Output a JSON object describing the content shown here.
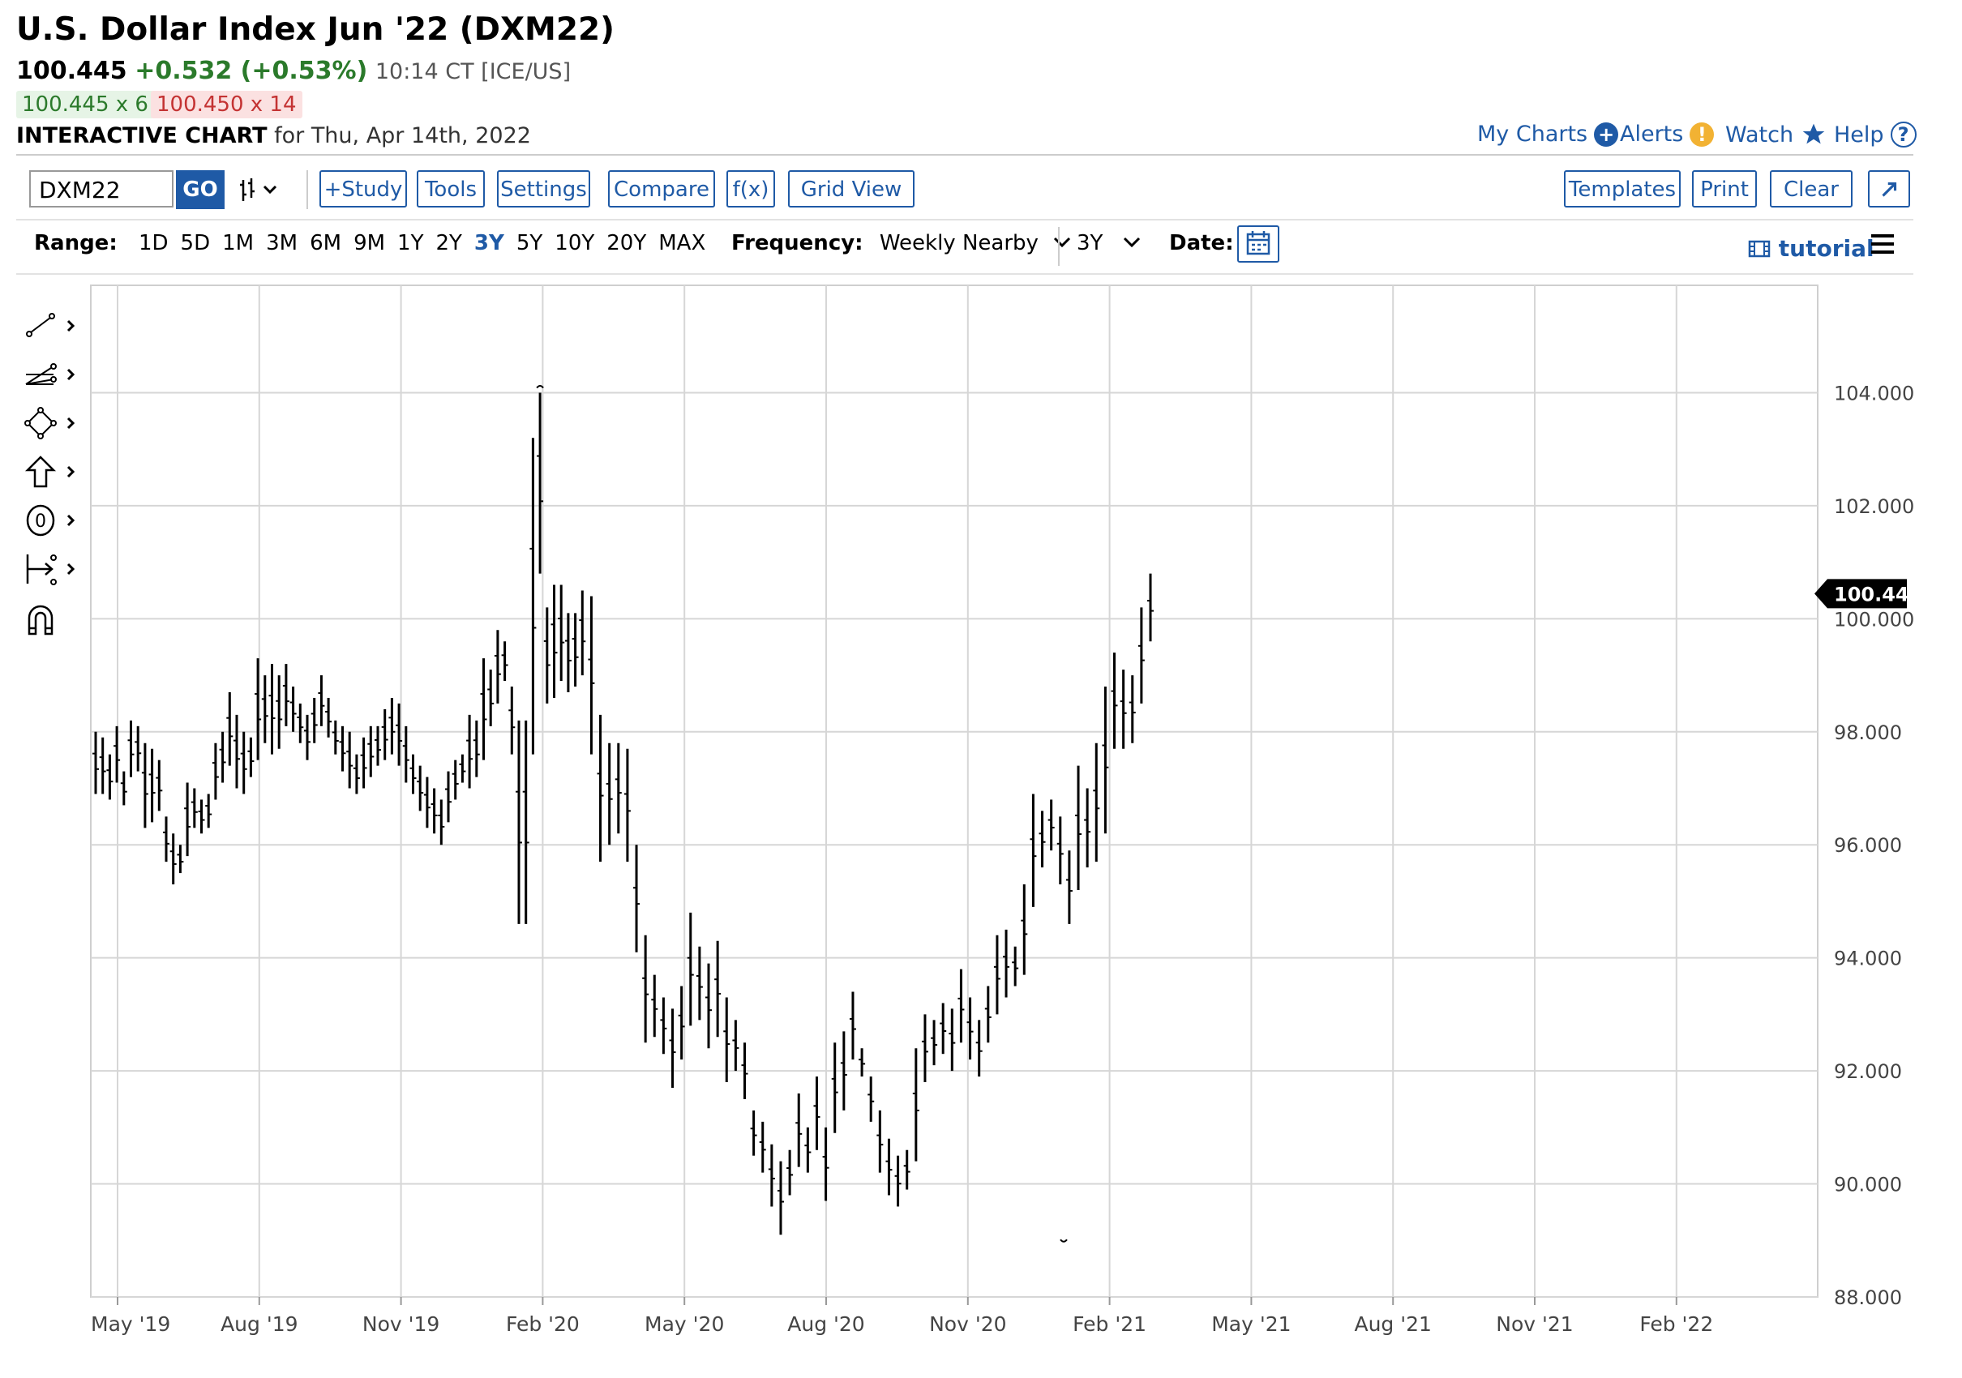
{
  "header": {
    "title": "U.S. Dollar Index Jun '22 (DXM22)",
    "last": "100.445",
    "change": "+0.532 (+0.53%)",
    "time": "10:14 CT [ICE/US]",
    "bid": "100.445 x 6",
    "ask": "100.450 x 14",
    "chart_label": "INTERACTIVE CHART",
    "chart_date": "for Thu, Apr 14th, 2022"
  },
  "toplinks": {
    "my_charts": "My Charts",
    "alerts": "Alerts",
    "watch": "Watch",
    "help": "Help"
  },
  "toolbar": {
    "symbol": "DXM22",
    "go": "GO",
    "study": "+Study",
    "tools": "Tools",
    "settings": "Settings",
    "compare": "Compare",
    "fx": "f(x)",
    "grid_view": "Grid View",
    "templates": "Templates",
    "print": "Print",
    "clear": "Clear"
  },
  "rangebar": {
    "range_label": "Range:",
    "ranges": [
      "1D",
      "5D",
      "1M",
      "3M",
      "6M",
      "9M",
      "1Y",
      "2Y",
      "3Y",
      "5Y",
      "10Y",
      "20Y",
      "MAX"
    ],
    "selected_range": "3Y",
    "frequency_label": "Frequency:",
    "frequency_value": "Weekly Nearby",
    "period_value": "3Y",
    "date_label": "Date:",
    "tutorial": "tutorial"
  },
  "drawing_tools": [
    "line-tool-icon",
    "fan-tool-icon",
    "shape-tool-icon",
    "arrow-tool-icon",
    "text-tool-icon",
    "measure-tool-icon",
    "magnet-icon"
  ],
  "colors": {
    "accent": "#1f5aa6",
    "up": "#2b7a2b",
    "down": "#c43333",
    "bars": "#000000",
    "grid": "#d6d6d6"
  },
  "chart_data": {
    "type": "ohlc",
    "frequency": "weekly",
    "y_ticks": [
      "104.000",
      "102.000",
      "100.000",
      "98.000",
      "96.000",
      "94.000",
      "92.000",
      "90.000",
      "88.000"
    ],
    "ylim": [
      88,
      105.9
    ],
    "x_labels": [
      "May '19",
      "Aug '19",
      "Nov '19",
      "Feb '20",
      "May '20",
      "Aug '20",
      "Nov '20",
      "Feb '21",
      "May '21",
      "Aug '21",
      "Nov '21",
      "Feb '22"
    ],
    "last_price_label": "100.445",
    "last_price": 100.445,
    "high_marker": 104.0,
    "low_marker": 89.1,
    "series": [
      {
        "name": "DXM22 weekly high/low",
        "points": [
          [
            0,
            96.9,
            98.0
          ],
          [
            1,
            96.9,
            97.9
          ],
          [
            2,
            96.8,
            97.6
          ],
          [
            3,
            97.1,
            98.1
          ],
          [
            4,
            96.7,
            97.3
          ],
          [
            5,
            97.2,
            98.2
          ],
          [
            6,
            97.3,
            98.1
          ],
          [
            7,
            96.3,
            97.8
          ],
          [
            8,
            96.4,
            97.7
          ],
          [
            9,
            96.6,
            97.5
          ],
          [
            10,
            95.7,
            96.5
          ],
          [
            11,
            95.3,
            96.2
          ],
          [
            12,
            95.5,
            96.0
          ],
          [
            13,
            95.8,
            97.1
          ],
          [
            14,
            96.3,
            97.0
          ],
          [
            15,
            96.2,
            96.8
          ],
          [
            16,
            96.3,
            96.9
          ],
          [
            17,
            96.8,
            97.8
          ],
          [
            18,
            97.1,
            98.0
          ],
          [
            19,
            97.4,
            98.7
          ],
          [
            20,
            97.0,
            98.3
          ],
          [
            21,
            96.9,
            98.0
          ],
          [
            22,
            97.2,
            97.9
          ],
          [
            23,
            97.5,
            99.3
          ],
          [
            24,
            97.8,
            99.0
          ],
          [
            25,
            97.6,
            99.2
          ],
          [
            26,
            97.7,
            99.0
          ],
          [
            27,
            98.1,
            99.2
          ],
          [
            28,
            98.0,
            98.8
          ],
          [
            29,
            97.8,
            98.5
          ],
          [
            30,
            97.5,
            98.3
          ],
          [
            31,
            97.8,
            98.6
          ],
          [
            32,
            98.1,
            99.0
          ],
          [
            33,
            97.9,
            98.6
          ],
          [
            34,
            97.6,
            98.2
          ],
          [
            35,
            97.3,
            98.1
          ],
          [
            36,
            97.0,
            98.0
          ],
          [
            37,
            96.9,
            97.6
          ],
          [
            38,
            97.0,
            97.9
          ],
          [
            39,
            97.2,
            98.1
          ],
          [
            40,
            97.4,
            98.1
          ],
          [
            41,
            97.5,
            98.4
          ],
          [
            42,
            97.6,
            98.6
          ],
          [
            43,
            97.4,
            98.5
          ],
          [
            44,
            97.1,
            98.1
          ],
          [
            45,
            96.9,
            97.6
          ],
          [
            46,
            96.6,
            97.4
          ],
          [
            47,
            96.3,
            97.2
          ],
          [
            48,
            96.2,
            97.0
          ],
          [
            49,
            96.0,
            96.8
          ],
          [
            50,
            96.4,
            97.3
          ],
          [
            51,
            96.8,
            97.5
          ],
          [
            52,
            97.1,
            97.6
          ],
          [
            53,
            97.0,
            98.3
          ],
          [
            54,
            97.2,
            98.2
          ],
          [
            55,
            97.5,
            99.3
          ],
          [
            56,
            98.1,
            99.1
          ],
          [
            57,
            98.5,
            99.8
          ],
          [
            58,
            98.9,
            99.6
          ],
          [
            59,
            97.6,
            98.8
          ],
          [
            60,
            94.6,
            98.2
          ],
          [
            61,
            94.6,
            98.2
          ],
          [
            62,
            97.6,
            103.2
          ],
          [
            63,
            100.8,
            104.0
          ],
          [
            64,
            98.5,
            100.2
          ],
          [
            65,
            98.6,
            100.6
          ],
          [
            66,
            98.9,
            100.6
          ],
          [
            67,
            98.7,
            100.1
          ],
          [
            68,
            98.8,
            100.1
          ],
          [
            69,
            99.0,
            100.5
          ]
        ]
      }
    ]
  }
}
